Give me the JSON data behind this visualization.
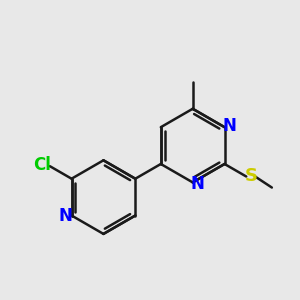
{
  "background_color": "#e8e8e8",
  "bond_color": "#1a1a1a",
  "N_color": "#0000ff",
  "Cl_color": "#00cc00",
  "S_color": "#cccc00",
  "bond_width": 1.8,
  "font_size_atom": 12,
  "xlim": [
    0,
    10
  ],
  "ylim": [
    0,
    10
  ]
}
